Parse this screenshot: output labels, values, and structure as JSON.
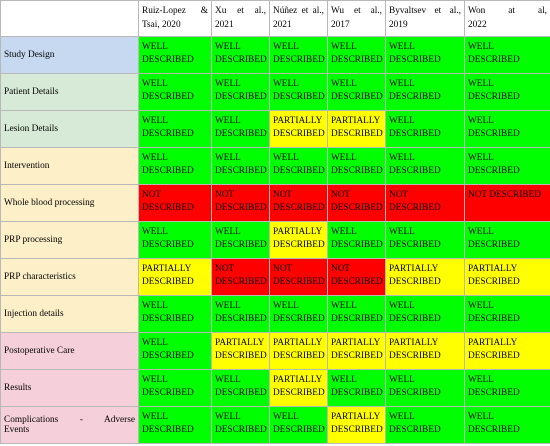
{
  "colors": {
    "WELL DESCRIBED": "#00ff00",
    "PARTIALLY DESCRIBED": "#ffff00",
    "NOT DESCRIBED": "#ff0000",
    "row_blue": "#c6d9f1",
    "row_green": "#d7e9d7",
    "row_cream": "#fdefc8",
    "row_pink": "#f5d0da"
  },
  "columns": [
    {
      "line1": "Ruiz-Lopez &",
      "line2": "Tsai, 2020"
    },
    {
      "line1": "Xu et al.,",
      "line2": "2021"
    },
    {
      "line1": "Núñez et al.,",
      "line2": "2021"
    },
    {
      "line1": "Wu et al.,",
      "line2": "2017"
    },
    {
      "line1": "Byvaltsev et al.,",
      "line2": "2019"
    },
    {
      "line1": "Won at al,",
      "line2": "2022"
    }
  ],
  "rows": [
    {
      "label": "Study Design",
      "tint": "row_blue",
      "cells": [
        "WELL DESCRIBED",
        "WELL DESCRIBED",
        "WELL DESCRIBED",
        "WELL DESCRIBED",
        "WELL DESCRIBED",
        "WELL DESCRIBED"
      ]
    },
    {
      "label": "Patient Details",
      "tint": "row_green",
      "cells": [
        "WELL DESCRIBED",
        "WELL DESCRIBED",
        "WELL DESCRIBED",
        "WELL DESCRIBED",
        "WELL DESCRIBED",
        "WELL DESCRIBED"
      ]
    },
    {
      "label": "Lesion Details",
      "tint": "row_green",
      "cells": [
        "WELL DESCRIBED",
        "WELL DESCRIBED",
        "PARTIALLY DESCRIBED",
        "PARTIALLY DESCRIBED",
        "WELL DESCRIBED",
        "WELL DESCRIBED"
      ]
    },
    {
      "label": "Intervention",
      "tint": "row_cream",
      "cells": [
        "WELL DESCRIBED",
        "WELL DESCRIBED",
        "WELL DESCRIBED",
        "WELL DESCRIBED",
        "WELL DESCRIBED",
        "WELL DESCRIBED"
      ]
    },
    {
      "label": "Whole blood processing",
      "tint": "row_cream",
      "cells": [
        "NOT DESCRIBED",
        "NOT DESCRIBED",
        "NOT DESCRIBED",
        "NOT DESCRIBED",
        "NOT DESCRIBED",
        "NOT DESCRIBED"
      ]
    },
    {
      "label": "PRP processing",
      "tint": "row_cream",
      "cells": [
        "WELL DESCRIBED",
        "WELL DESCRIBED",
        "PARTIALLY DESCRIBED",
        "WELL DESCRIBED",
        "WELL DESCRIBED",
        "WELL DESCRIBED"
      ]
    },
    {
      "label": "PRP characteristics",
      "tint": "row_cream",
      "cells": [
        "PARTIALLY DESCRIBED",
        "NOT DESCRIBED",
        "NOT DESCRIBED",
        "NOT DESCRIBED",
        "PARTIALLY DESCRIBED",
        "PARTIALLY DESCRIBED"
      ]
    },
    {
      "label": "Injection details",
      "tint": "row_cream",
      "cells": [
        "WELL DESCRIBED",
        "WELL DESCRIBED",
        "WELL DESCRIBED",
        "WELL DESCRIBED",
        "WELL DESCRIBED",
        "WELL DESCRIBED"
      ]
    },
    {
      "label": "Postoperative Care",
      "tint": "row_pink",
      "cells": [
        "WELL DESCRIBED",
        "PARTIALLY DESCRIBED",
        "PARTIALLY DESCRIBED",
        "PARTIALLY DESCRIBED",
        "PARTIALLY DESCRIBED",
        "PARTIALLY DESCRIBED"
      ]
    },
    {
      "label": "Results",
      "tint": "row_pink",
      "cells": [
        "WELL DESCRIBED",
        "WELL DESCRIBED",
        "PARTIALLY DESCRIBED",
        "WELL DESCRIBED",
        "WELL DESCRIBED",
        "WELL DESCRIBED"
      ]
    },
    {
      "label": "Complications - Adverse Events",
      "label_line1": "Complications - Adverse",
      "label_line2": "Events",
      "tint": "row_pink",
      "cells": [
        "WELL DESCRIBED",
        "WELL DESCRIBED",
        "WELL DESCRIBED",
        "PARTIALLY DESCRIBED",
        "WELL DESCRIBED",
        "WELL DESCRIBED"
      ]
    }
  ]
}
